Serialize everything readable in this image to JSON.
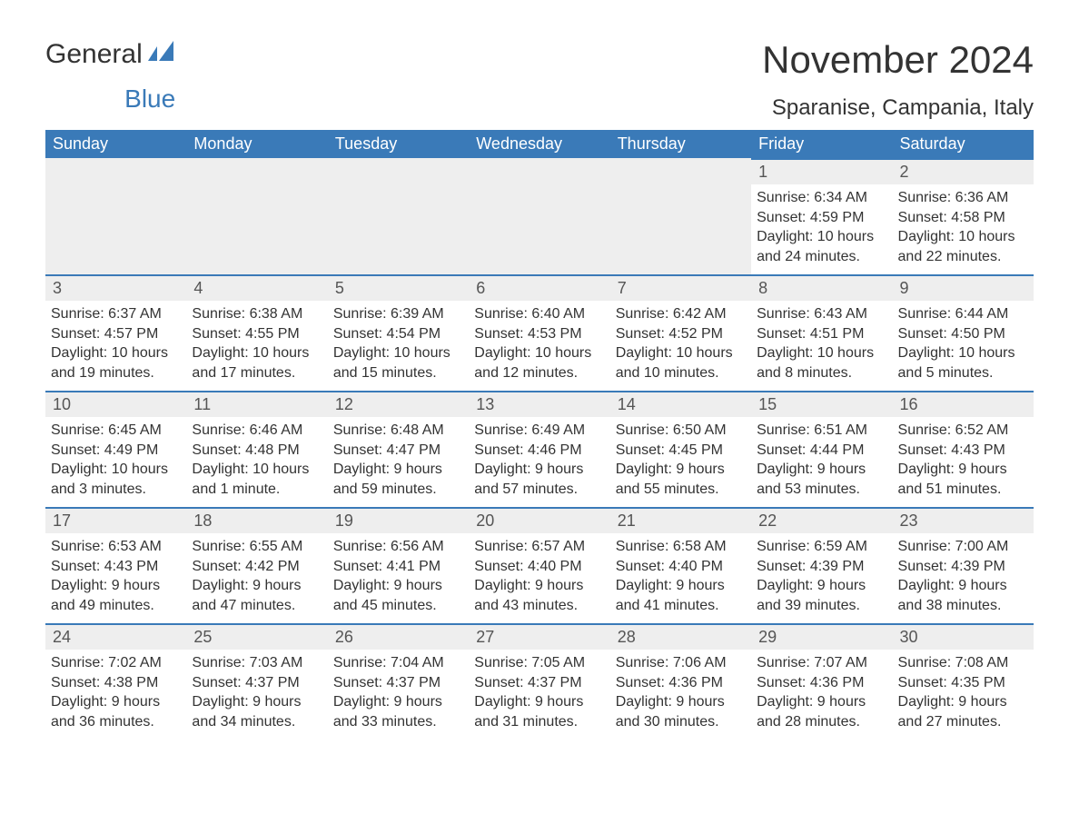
{
  "logo": {
    "word1": "General",
    "word2": "Blue"
  },
  "title": "November 2024",
  "location": "Sparanise, Campania, Italy",
  "colors": {
    "header_bg": "#3a7ab8",
    "header_text": "#ffffff",
    "daynum_bg": "#eeeeee",
    "body_text": "#333333",
    "logo_blue": "#3a7ab8"
  },
  "weekdays": [
    "Sunday",
    "Monday",
    "Tuesday",
    "Wednesday",
    "Thursday",
    "Friday",
    "Saturday"
  ],
  "weeks": [
    [
      {
        "empty": true
      },
      {
        "empty": true
      },
      {
        "empty": true
      },
      {
        "empty": true
      },
      {
        "empty": true
      },
      {
        "n": "1",
        "sunrise": "Sunrise: 6:34 AM",
        "sunset": "Sunset: 4:59 PM",
        "d1": "Daylight: 10 hours",
        "d2": "and 24 minutes."
      },
      {
        "n": "2",
        "sunrise": "Sunrise: 6:36 AM",
        "sunset": "Sunset: 4:58 PM",
        "d1": "Daylight: 10 hours",
        "d2": "and 22 minutes."
      }
    ],
    [
      {
        "n": "3",
        "sunrise": "Sunrise: 6:37 AM",
        "sunset": "Sunset: 4:57 PM",
        "d1": "Daylight: 10 hours",
        "d2": "and 19 minutes."
      },
      {
        "n": "4",
        "sunrise": "Sunrise: 6:38 AM",
        "sunset": "Sunset: 4:55 PM",
        "d1": "Daylight: 10 hours",
        "d2": "and 17 minutes."
      },
      {
        "n": "5",
        "sunrise": "Sunrise: 6:39 AM",
        "sunset": "Sunset: 4:54 PM",
        "d1": "Daylight: 10 hours",
        "d2": "and 15 minutes."
      },
      {
        "n": "6",
        "sunrise": "Sunrise: 6:40 AM",
        "sunset": "Sunset: 4:53 PM",
        "d1": "Daylight: 10 hours",
        "d2": "and 12 minutes."
      },
      {
        "n": "7",
        "sunrise": "Sunrise: 6:42 AM",
        "sunset": "Sunset: 4:52 PM",
        "d1": "Daylight: 10 hours",
        "d2": "and 10 minutes."
      },
      {
        "n": "8",
        "sunrise": "Sunrise: 6:43 AM",
        "sunset": "Sunset: 4:51 PM",
        "d1": "Daylight: 10 hours",
        "d2": "and 8 minutes."
      },
      {
        "n": "9",
        "sunrise": "Sunrise: 6:44 AM",
        "sunset": "Sunset: 4:50 PM",
        "d1": "Daylight: 10 hours",
        "d2": "and 5 minutes."
      }
    ],
    [
      {
        "n": "10",
        "sunrise": "Sunrise: 6:45 AM",
        "sunset": "Sunset: 4:49 PM",
        "d1": "Daylight: 10 hours",
        "d2": "and 3 minutes."
      },
      {
        "n": "11",
        "sunrise": "Sunrise: 6:46 AM",
        "sunset": "Sunset: 4:48 PM",
        "d1": "Daylight: 10 hours",
        "d2": "and 1 minute."
      },
      {
        "n": "12",
        "sunrise": "Sunrise: 6:48 AM",
        "sunset": "Sunset: 4:47 PM",
        "d1": "Daylight: 9 hours",
        "d2": "and 59 minutes."
      },
      {
        "n": "13",
        "sunrise": "Sunrise: 6:49 AM",
        "sunset": "Sunset: 4:46 PM",
        "d1": "Daylight: 9 hours",
        "d2": "and 57 minutes."
      },
      {
        "n": "14",
        "sunrise": "Sunrise: 6:50 AM",
        "sunset": "Sunset: 4:45 PM",
        "d1": "Daylight: 9 hours",
        "d2": "and 55 minutes."
      },
      {
        "n": "15",
        "sunrise": "Sunrise: 6:51 AM",
        "sunset": "Sunset: 4:44 PM",
        "d1": "Daylight: 9 hours",
        "d2": "and 53 minutes."
      },
      {
        "n": "16",
        "sunrise": "Sunrise: 6:52 AM",
        "sunset": "Sunset: 4:43 PM",
        "d1": "Daylight: 9 hours",
        "d2": "and 51 minutes."
      }
    ],
    [
      {
        "n": "17",
        "sunrise": "Sunrise: 6:53 AM",
        "sunset": "Sunset: 4:43 PM",
        "d1": "Daylight: 9 hours",
        "d2": "and 49 minutes."
      },
      {
        "n": "18",
        "sunrise": "Sunrise: 6:55 AM",
        "sunset": "Sunset: 4:42 PM",
        "d1": "Daylight: 9 hours",
        "d2": "and 47 minutes."
      },
      {
        "n": "19",
        "sunrise": "Sunrise: 6:56 AM",
        "sunset": "Sunset: 4:41 PM",
        "d1": "Daylight: 9 hours",
        "d2": "and 45 minutes."
      },
      {
        "n": "20",
        "sunrise": "Sunrise: 6:57 AM",
        "sunset": "Sunset: 4:40 PM",
        "d1": "Daylight: 9 hours",
        "d2": "and 43 minutes."
      },
      {
        "n": "21",
        "sunrise": "Sunrise: 6:58 AM",
        "sunset": "Sunset: 4:40 PM",
        "d1": "Daylight: 9 hours",
        "d2": "and 41 minutes."
      },
      {
        "n": "22",
        "sunrise": "Sunrise: 6:59 AM",
        "sunset": "Sunset: 4:39 PM",
        "d1": "Daylight: 9 hours",
        "d2": "and 39 minutes."
      },
      {
        "n": "23",
        "sunrise": "Sunrise: 7:00 AM",
        "sunset": "Sunset: 4:39 PM",
        "d1": "Daylight: 9 hours",
        "d2": "and 38 minutes."
      }
    ],
    [
      {
        "n": "24",
        "sunrise": "Sunrise: 7:02 AM",
        "sunset": "Sunset: 4:38 PM",
        "d1": "Daylight: 9 hours",
        "d2": "and 36 minutes."
      },
      {
        "n": "25",
        "sunrise": "Sunrise: 7:03 AM",
        "sunset": "Sunset: 4:37 PM",
        "d1": "Daylight: 9 hours",
        "d2": "and 34 minutes."
      },
      {
        "n": "26",
        "sunrise": "Sunrise: 7:04 AM",
        "sunset": "Sunset: 4:37 PM",
        "d1": "Daylight: 9 hours",
        "d2": "and 33 minutes."
      },
      {
        "n": "27",
        "sunrise": "Sunrise: 7:05 AM",
        "sunset": "Sunset: 4:37 PM",
        "d1": "Daylight: 9 hours",
        "d2": "and 31 minutes."
      },
      {
        "n": "28",
        "sunrise": "Sunrise: 7:06 AM",
        "sunset": "Sunset: 4:36 PM",
        "d1": "Daylight: 9 hours",
        "d2": "and 30 minutes."
      },
      {
        "n": "29",
        "sunrise": "Sunrise: 7:07 AM",
        "sunset": "Sunset: 4:36 PM",
        "d1": "Daylight: 9 hours",
        "d2": "and 28 minutes."
      },
      {
        "n": "30",
        "sunrise": "Sunrise: 7:08 AM",
        "sunset": "Sunset: 4:35 PM",
        "d1": "Daylight: 9 hours",
        "d2": "and 27 minutes."
      }
    ]
  ]
}
